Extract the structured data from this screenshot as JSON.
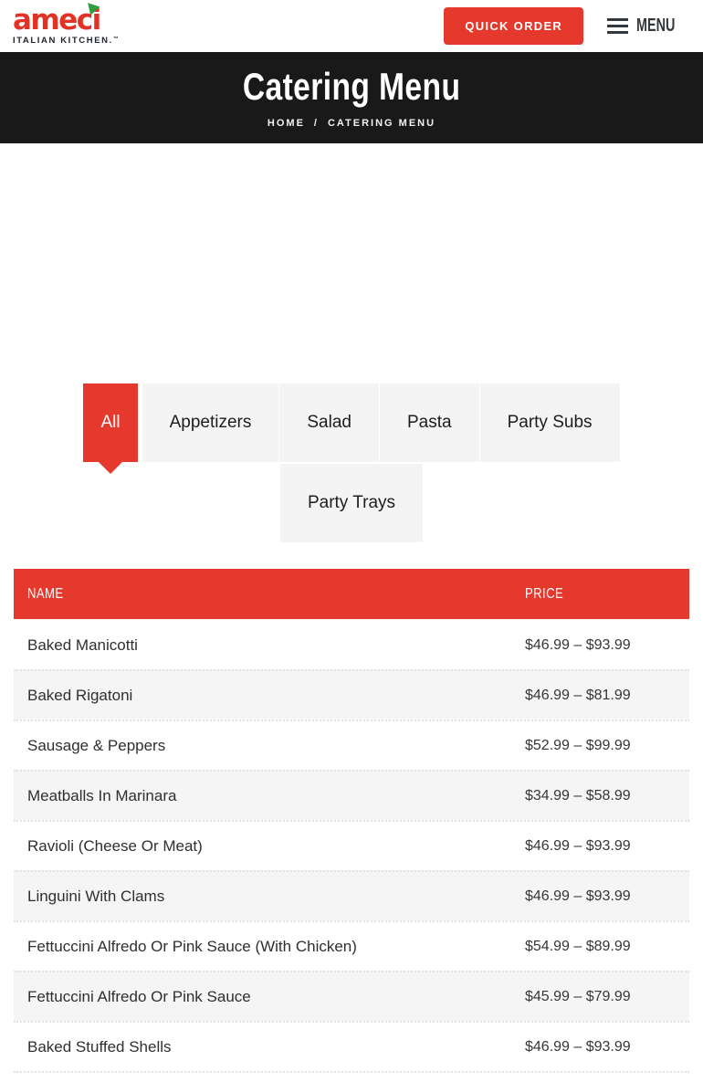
{
  "header": {
    "logo": {
      "brand": "ameci",
      "tagline": "ITALIAN KITCHEN.",
      "trademark": "™"
    },
    "quick_order_label": "QUICK ORDER",
    "menu_label": "MENU"
  },
  "hero": {
    "title": "Catering Menu",
    "breadcrumb": {
      "home": "HOME",
      "separator": "/",
      "current": "CATERING MENU"
    }
  },
  "filter_tabs": [
    {
      "label": "All",
      "active": true
    },
    {
      "label": "Appetizers",
      "active": false
    },
    {
      "label": "Salad",
      "active": false
    },
    {
      "label": "Pasta",
      "active": false
    },
    {
      "label": "Party Subs",
      "active": false
    },
    {
      "label": "Party Trays",
      "active": false
    }
  ],
  "menu_table": {
    "columns": {
      "name": "NAME",
      "price": "PRICE"
    },
    "rows": [
      {
        "name": "Baked Manicotti",
        "price": "$46.99 – $93.99"
      },
      {
        "name": "Baked Rigatoni",
        "price": "$46.99 – $81.99"
      },
      {
        "name": "Sausage & Peppers",
        "price": "$52.99 – $99.99"
      },
      {
        "name": "Meatballs In Marinara",
        "price": "$34.99 – $58.99"
      },
      {
        "name": "Ravioli (Cheese Or Meat)",
        "price": "$46.99 – $93.99"
      },
      {
        "name": "Linguini With Clams",
        "price": "$46.99 – $93.99"
      },
      {
        "name": "Fettuccini Alfredo Or Pink Sauce (With Chicken)",
        "price": "$54.99 – $89.99"
      },
      {
        "name": "Fettuccini Alfredo Or Pink Sauce",
        "price": "$45.99 – $79.99"
      },
      {
        "name": "Baked Stuffed Shells",
        "price": "$46.99 – $93.99"
      }
    ]
  },
  "colors": {
    "accent_red": "#e5392d",
    "hero_black": "#191919",
    "logo_green": "#2f9e41",
    "tab_gray": "#f4f4f4",
    "row_gray": "#f5f5f5",
    "text_dark": "#2f2f2f"
  }
}
